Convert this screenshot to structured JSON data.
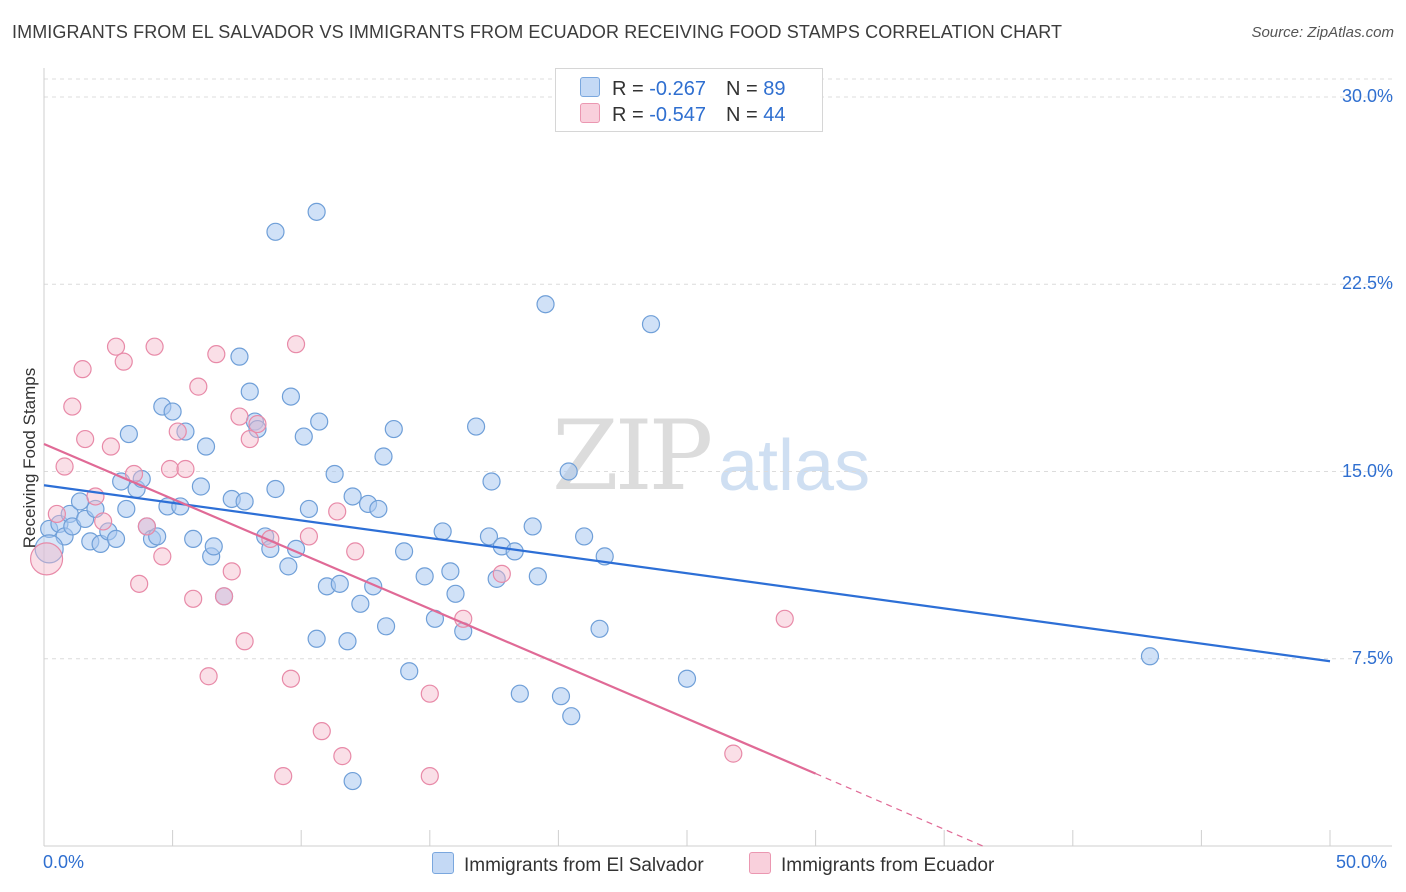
{
  "title": "IMMIGRANTS FROM EL SALVADOR VS IMMIGRANTS FROM ECUADOR RECEIVING FOOD STAMPS CORRELATION CHART",
  "source": "Source: ZipAtlas.com",
  "watermark": {
    "zip": "ZIP",
    "atlas": "atlas"
  },
  "legend_top": [
    {
      "r_label": "R = ",
      "r_value": "-0.267",
      "n_label": "N = ",
      "n_value": "89",
      "color": "#a9c8f0"
    },
    {
      "r_label": "R = ",
      "r_value": "-0.547",
      "n_label": "N = ",
      "n_value": "44",
      "color": "#f5b8c9"
    }
  ],
  "colors": {
    "blue_fill": "#a9c8f0",
    "blue_stroke": "#6f9fd8",
    "blue_line": "#2d6fd6",
    "pink_fill": "#f5b8c9",
    "pink_stroke": "#e88aa8",
    "pink_line": "#e06a96",
    "tick_text": "#2f6fd0"
  },
  "chart_data": {
    "type": "scatter",
    "title": "IMMIGRANTS FROM EL SALVADOR VS IMMIGRANTS FROM ECUADOR RECEIVING FOOD STAMPS CORRELATION CHART",
    "xlabel": "",
    "ylabel": "Receiving Food Stamps",
    "xlim": [
      0,
      50
    ],
    "ylim": [
      0,
      30
    ],
    "x_tick_labels": [
      "0.0%",
      "50.0%"
    ],
    "y_ticks": [
      7.5,
      15.0,
      22.5,
      30.0
    ],
    "y_tick_labels": [
      "7.5%",
      "15.0%",
      "22.5%",
      "30.0%"
    ],
    "grid": "horizontal dashed",
    "legend_position": "top-center and bottom",
    "series": [
      {
        "name": "Immigrants from El Salvador",
        "color": "#a9c8f0",
        "trend": {
          "x": [
            0,
            50
          ],
          "y": [
            14.45,
            7.4
          ]
        },
        "points": [
          [
            0.2,
            12.7
          ],
          [
            0.6,
            12.9
          ],
          [
            0.8,
            12.4
          ],
          [
            1.0,
            13.3
          ],
          [
            1.1,
            12.8
          ],
          [
            1.4,
            13.8
          ],
          [
            1.6,
            13.1
          ],
          [
            1.8,
            12.2
          ],
          [
            2.0,
            13.5
          ],
          [
            2.2,
            12.1
          ],
          [
            2.5,
            12.6
          ],
          [
            2.8,
            12.3
          ],
          [
            3.0,
            14.6
          ],
          [
            3.2,
            13.5
          ],
          [
            3.3,
            16.5
          ],
          [
            3.6,
            14.3
          ],
          [
            3.8,
            14.7
          ],
          [
            4.0,
            12.8
          ],
          [
            4.2,
            12.3
          ],
          [
            4.4,
            12.4
          ],
          [
            4.6,
            17.6
          ],
          [
            4.8,
            13.6
          ],
          [
            5.0,
            17.4
          ],
          [
            5.3,
            13.6
          ],
          [
            5.5,
            16.6
          ],
          [
            5.8,
            12.3
          ],
          [
            6.1,
            14.4
          ],
          [
            6.3,
            16.0
          ],
          [
            6.5,
            11.6
          ],
          [
            6.6,
            12.0
          ],
          [
            7.0,
            10.0
          ],
          [
            7.3,
            13.9
          ],
          [
            7.6,
            19.6
          ],
          [
            7.8,
            13.8
          ],
          [
            8.0,
            18.2
          ],
          [
            8.2,
            17.0
          ],
          [
            8.3,
            16.7
          ],
          [
            8.6,
            12.4
          ],
          [
            8.8,
            11.9
          ],
          [
            9.0,
            14.3
          ],
          [
            9.5,
            11.2
          ],
          [
            9.6,
            18.0
          ],
          [
            9.8,
            11.9
          ],
          [
            10.1,
            16.4
          ],
          [
            10.3,
            13.5
          ],
          [
            10.6,
            8.3
          ],
          [
            10.7,
            17.0
          ],
          [
            11.0,
            10.4
          ],
          [
            11.3,
            14.9
          ],
          [
            11.5,
            10.5
          ],
          [
            11.8,
            8.2
          ],
          [
            12.0,
            14.0
          ],
          [
            12.3,
            9.7
          ],
          [
            12.6,
            13.7
          ],
          [
            12.8,
            10.4
          ],
          [
            13.0,
            13.5
          ],
          [
            13.2,
            15.6
          ],
          [
            13.3,
            8.8
          ],
          [
            13.6,
            16.7
          ],
          [
            14.0,
            11.8
          ],
          [
            14.2,
            7.0
          ],
          [
            14.8,
            10.8
          ],
          [
            15.2,
            9.1
          ],
          [
            15.5,
            12.6
          ],
          [
            15.8,
            11.0
          ],
          [
            16.0,
            10.1
          ],
          [
            16.3,
            8.6
          ],
          [
            16.8,
            16.8
          ],
          [
            17.3,
            12.4
          ],
          [
            17.4,
            14.6
          ],
          [
            17.6,
            10.7
          ],
          [
            17.8,
            12.0
          ],
          [
            18.3,
            11.8
          ],
          [
            18.5,
            6.1
          ],
          [
            19.0,
            12.8
          ],
          [
            19.2,
            10.8
          ],
          [
            19.5,
            21.7
          ],
          [
            20.1,
            6.0
          ],
          [
            20.4,
            15.0
          ],
          [
            20.5,
            5.2
          ],
          [
            21.0,
            12.4
          ],
          [
            21.6,
            8.7
          ],
          [
            21.8,
            11.6
          ],
          [
            23.6,
            20.9
          ],
          [
            25.0,
            6.7
          ],
          [
            9.0,
            24.6
          ],
          [
            10.6,
            25.4
          ],
          [
            12.0,
            2.6
          ],
          [
            43.0,
            7.6
          ]
        ]
      },
      {
        "name": "Immigrants from Ecuador",
        "color": "#f5b8c9",
        "trend": {
          "x": [
            0,
            30
          ],
          "y": [
            16.1,
            2.9
          ],
          "dashed_to": [
            36.5,
            0.0
          ]
        },
        "points": [
          [
            0.1,
            11.5
          ],
          [
            0.5,
            13.3
          ],
          [
            0.8,
            15.2
          ],
          [
            1.1,
            17.6
          ],
          [
            1.5,
            19.1
          ],
          [
            1.6,
            16.3
          ],
          [
            2.0,
            14.0
          ],
          [
            2.3,
            13.0
          ],
          [
            2.6,
            16.0
          ],
          [
            2.8,
            20.0
          ],
          [
            3.1,
            19.4
          ],
          [
            3.5,
            14.9
          ],
          [
            3.7,
            10.5
          ],
          [
            4.0,
            12.8
          ],
          [
            4.3,
            20.0
          ],
          [
            4.6,
            11.6
          ],
          [
            4.9,
            15.1
          ],
          [
            5.2,
            16.6
          ],
          [
            5.5,
            15.1
          ],
          [
            5.8,
            9.9
          ],
          [
            6.0,
            18.4
          ],
          [
            6.4,
            6.8
          ],
          [
            6.7,
            19.7
          ],
          [
            7.0,
            10.0
          ],
          [
            7.3,
            11.0
          ],
          [
            7.6,
            17.2
          ],
          [
            7.8,
            8.2
          ],
          [
            8.0,
            16.3
          ],
          [
            8.3,
            16.9
          ],
          [
            8.8,
            12.3
          ],
          [
            9.3,
            2.8
          ],
          [
            9.6,
            6.7
          ],
          [
            9.8,
            20.1
          ],
          [
            10.3,
            12.4
          ],
          [
            10.8,
            4.6
          ],
          [
            11.4,
            13.4
          ],
          [
            11.6,
            3.6
          ],
          [
            12.1,
            11.8
          ],
          [
            15.0,
            6.1
          ],
          [
            15.0,
            2.8
          ],
          [
            16.3,
            9.1
          ],
          [
            17.8,
            10.9
          ],
          [
            26.8,
            3.7
          ],
          [
            28.8,
            9.1
          ]
        ]
      }
    ]
  },
  "bottom_legend": {
    "series1": "Immigrants from El Salvador",
    "series2": "Immigrants from Ecuador"
  }
}
